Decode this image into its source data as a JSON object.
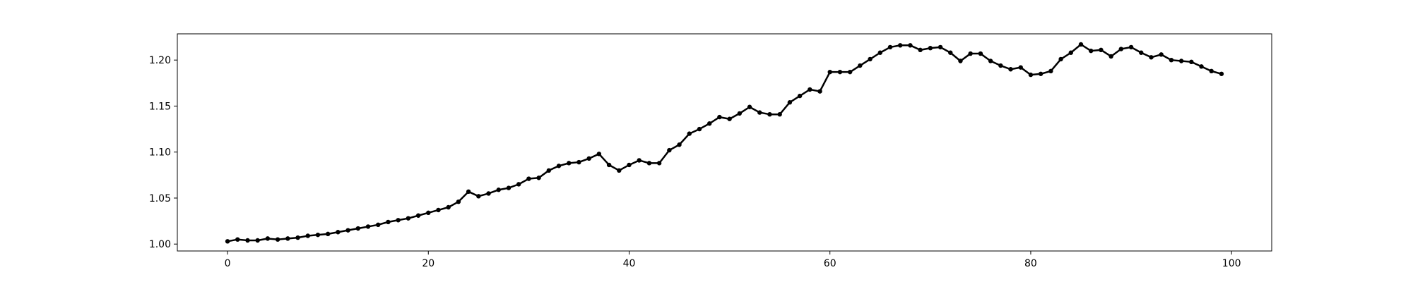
{
  "chart_data": {
    "type": "line",
    "title": "",
    "xlabel": "",
    "ylabel": "",
    "xlim": [
      -5,
      104
    ],
    "ylim": [
      0.9925,
      1.2285
    ],
    "grid": false,
    "x_ticks": [
      0,
      20,
      40,
      60,
      80,
      100
    ],
    "x_tick_labels": [
      "0",
      "20",
      "40",
      "60",
      "80",
      "100"
    ],
    "y_ticks": [
      1.0,
      1.05,
      1.1,
      1.15,
      1.2
    ],
    "y_tick_labels": [
      "1.00",
      "1.05",
      "1.10",
      "1.15",
      "1.20"
    ],
    "series": [
      {
        "color": "#000000",
        "marker": "circle",
        "x": [
          0,
          1,
          2,
          3,
          4,
          5,
          6,
          7,
          8,
          9,
          10,
          11,
          12,
          13,
          14,
          15,
          16,
          17,
          18,
          19,
          20,
          21,
          22,
          23,
          24,
          25,
          26,
          27,
          28,
          29,
          30,
          31,
          32,
          33,
          34,
          35,
          36,
          37,
          38,
          39,
          40,
          41,
          42,
          43,
          44,
          45,
          46,
          47,
          48,
          49,
          50,
          51,
          52,
          53,
          54,
          55,
          56,
          57,
          58,
          59,
          60,
          61,
          62,
          63,
          64,
          65,
          66,
          67,
          68,
          69,
          70,
          71,
          72,
          73,
          74,
          75,
          76,
          77,
          78,
          79,
          80,
          81,
          82,
          83,
          84,
          85,
          86,
          87,
          88,
          89,
          90,
          91,
          92,
          93,
          94,
          95,
          96,
          97,
          98,
          99
        ],
        "values": [
          1.003,
          1.005,
          1.004,
          1.004,
          1.006,
          1.005,
          1.006,
          1.007,
          1.009,
          1.01,
          1.011,
          1.013,
          1.015,
          1.017,
          1.019,
          1.021,
          1.024,
          1.026,
          1.028,
          1.031,
          1.034,
          1.037,
          1.04,
          1.046,
          1.057,
          1.052,
          1.055,
          1.059,
          1.061,
          1.065,
          1.071,
          1.072,
          1.08,
          1.085,
          1.088,
          1.089,
          1.093,
          1.098,
          1.086,
          1.08,
          1.086,
          1.091,
          1.088,
          1.088,
          1.102,
          1.108,
          1.12,
          1.125,
          1.131,
          1.138,
          1.136,
          1.142,
          1.149,
          1.143,
          1.141,
          1.141,
          1.154,
          1.161,
          1.168,
          1.166,
          1.187,
          1.187,
          1.187,
          1.194,
          1.201,
          1.208,
          1.214,
          1.216,
          1.216,
          1.211,
          1.213,
          1.214,
          1.208,
          1.199,
          1.207,
          1.207,
          1.199,
          1.194,
          1.19,
          1.192,
          1.184,
          1.185,
          1.188,
          1.201,
          1.208,
          1.217,
          1.21,
          1.211,
          1.204,
          1.212,
          1.214,
          1.208,
          1.203,
          1.206,
          1.2,
          1.199,
          1.198,
          1.193,
          1.188,
          1.185
        ]
      }
    ]
  }
}
